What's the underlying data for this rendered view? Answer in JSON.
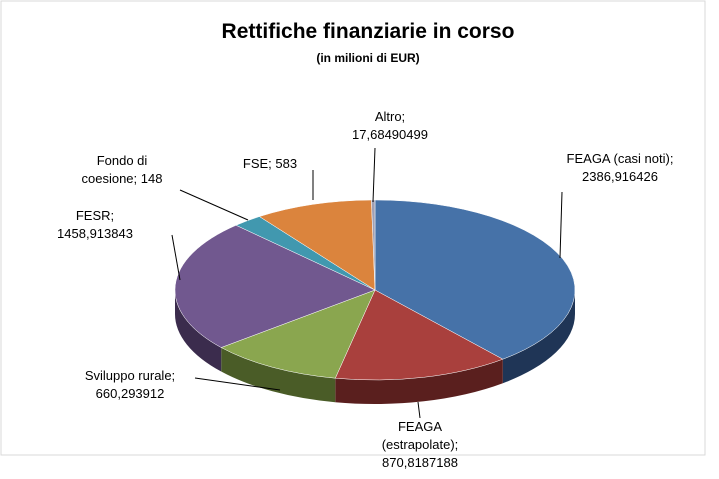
{
  "chart_data": {
    "type": "pie3d",
    "title": "Rettifiche finanziarie in corso",
    "subtitle": "(in milioni di EUR)",
    "categories": [
      "FEAGA (casi noti)",
      "FEAGA (estrapolate)",
      "Sviluppo rurale",
      "FESR",
      "Fondo di coesione",
      "FSE",
      "Altro"
    ],
    "values": [
      2386.916426,
      870.8187188,
      660.293912,
      1458.913843,
      148,
      583,
      17.68490499
    ],
    "value_labels": [
      "2386,916426",
      "870,8187188",
      "660,293912",
      "1458,913843",
      "148",
      "583",
      "17,68490499"
    ],
    "label_separator": ";",
    "colors": [
      "#4672a8",
      "#a9403d",
      "#8aa64f",
      "#71588f",
      "#4198af",
      "#db843d",
      "#a0a0b4"
    ],
    "side_colors": [
      "#1f3556",
      "#5a1f1e",
      "#4a5c27",
      "#3b2c4d",
      "#215564",
      "#7a4519",
      "#5c5c68"
    ]
  }
}
